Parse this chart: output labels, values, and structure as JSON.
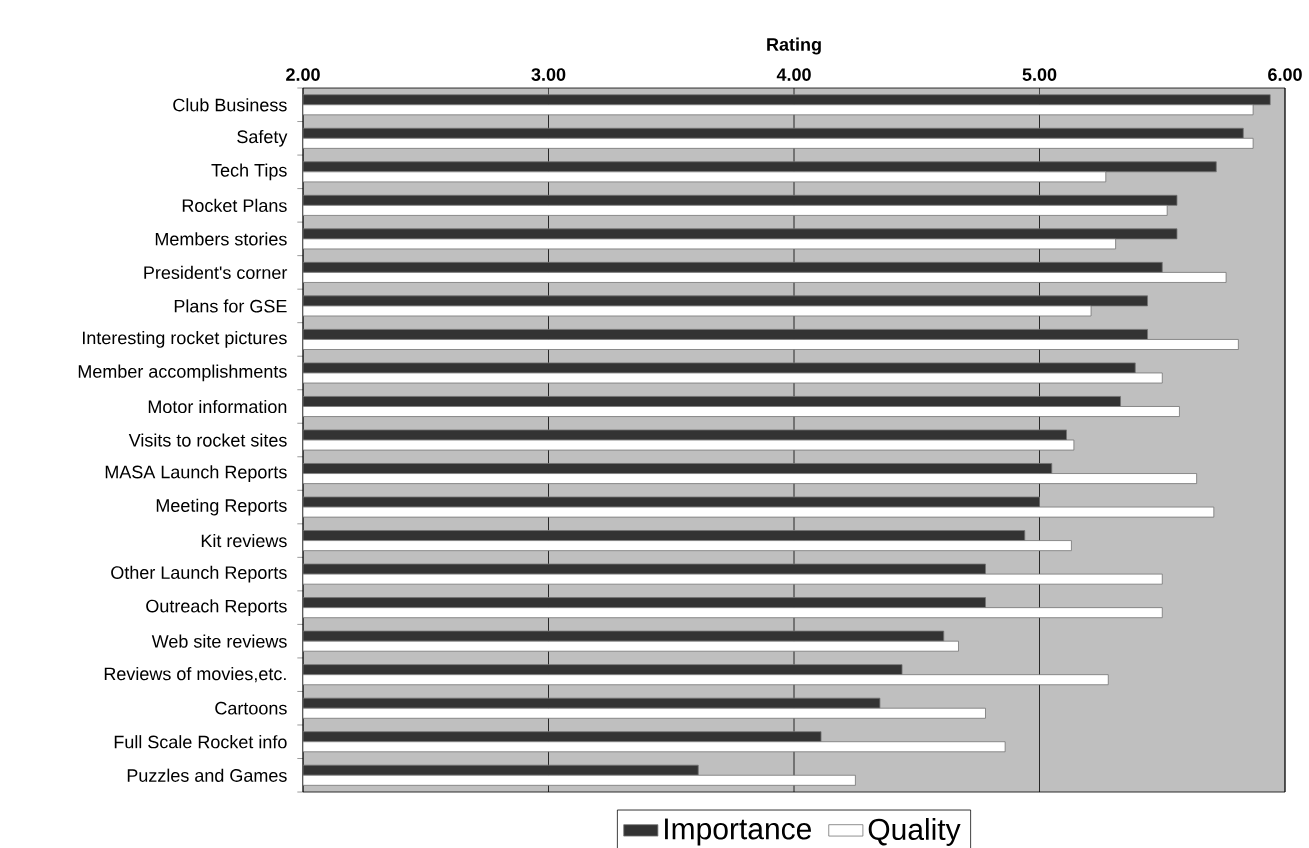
{
  "chart_data": {
    "type": "bar",
    "orientation": "horizontal",
    "xlabel": "Rating",
    "categories": [
      "Club Business",
      "Safety",
      "Tech Tips",
      "Rocket Plans",
      "Members stories",
      "President's corner",
      "Plans for GSE",
      "Interesting rocket pictures",
      "Member accomplishments",
      "Motor information",
      "Visits to rocket sites",
      "MASA Launch Reports",
      "Meeting Reports",
      "Kit reviews",
      "Other Launch Reports",
      "Outreach Reports",
      "Web site reviews",
      "Reviews of movies,etc.",
      "Cartoons",
      "Full Scale Rocket info",
      "Puzzles and Games"
    ],
    "series": [
      {
        "name": "Importance",
        "color": "#333333",
        "values": [
          5.94,
          5.83,
          5.72,
          5.56,
          5.56,
          5.5,
          5.44,
          5.44,
          5.39,
          5.33,
          5.11,
          5.05,
          5.0,
          4.94,
          4.78,
          4.78,
          4.61,
          4.44,
          4.35,
          4.11,
          3.61
        ]
      },
      {
        "name": "Quality",
        "color": "#ffffff",
        "values": [
          5.87,
          5.87,
          5.27,
          5.52,
          5.31,
          5.76,
          5.21,
          5.81,
          5.5,
          5.57,
          5.14,
          5.64,
          5.71,
          5.13,
          5.5,
          5.5,
          4.67,
          5.28,
          4.78,
          4.86,
          4.25
        ]
      }
    ],
    "xlim": [
      2,
      6
    ],
    "xticks": [
      {
        "value": 2,
        "label": "2.00"
      },
      {
        "value": 3,
        "label": "3.00"
      },
      {
        "value": 4,
        "label": "4.00"
      },
      {
        "value": 5,
        "label": "5.00"
      },
      {
        "value": 6,
        "label": "6.00"
      }
    ],
    "grid": "x",
    "legend": "bottom"
  }
}
